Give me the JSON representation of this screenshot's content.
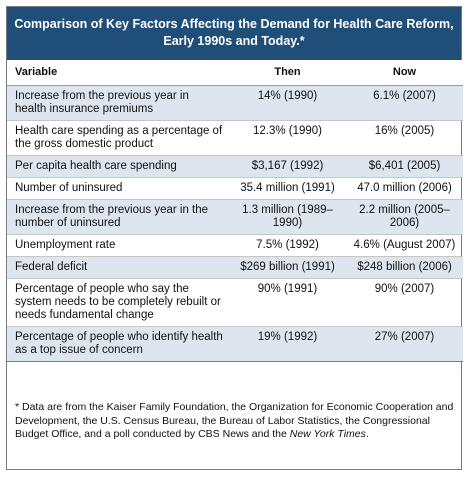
{
  "title": {
    "line1": "Comparison of Key Factors Affecting the Demand for Health Care Reform,",
    "line2": "Early 1990s and Today.*"
  },
  "headers": {
    "variable": "Variable",
    "then": "Then",
    "now": "Now"
  },
  "rows": [
    {
      "variable": "Increase from the previous year in health insurance premiums",
      "then": "14% (1990)",
      "now": "6.1% (2007)"
    },
    {
      "variable": "Health care spending as a percentage of the gross domestic product",
      "then": "12.3% (1990)",
      "now": "16% (2005)"
    },
    {
      "variable": "Per capita health care spending",
      "then": "$3,167 (1992)",
      "now": "$6,401 (2005)"
    },
    {
      "variable": "Number of uninsured",
      "then": "35.4 million (1991)",
      "now": "47.0 million (2006)"
    },
    {
      "variable": "Increase from the previous year in the number of uninsured",
      "then": "1.3 million (1989–1990)",
      "now": "2.2 million (2005–2006)"
    },
    {
      "variable": "Unemployment rate",
      "then": "7.5% (1992)",
      "now": "4.6% (August 2007)"
    },
    {
      "variable": "Federal deficit",
      "then": "$269 billion (1991)",
      "now": "$248 billion (2006)"
    },
    {
      "variable": "Percentage of people who say the system needs to be completely rebuilt or needs fundamental change",
      "then": "90% (1991)",
      "now": "90% (2007)"
    },
    {
      "variable": "Percentage of people who identify health as a top issue of concern",
      "then": "19% (1992)",
      "now": "27% (2007)"
    }
  ],
  "footnote": {
    "text": "* Data are from the Kaiser Family Foundation, the Organization for Economic Cooperation and Development, the U.S. Census Bureau, the Bureau of Labor Statistics, the Congressional Budget Office, and a poll conducted by CBS News and the",
    "italic": "New York Times",
    "end": "."
  }
}
